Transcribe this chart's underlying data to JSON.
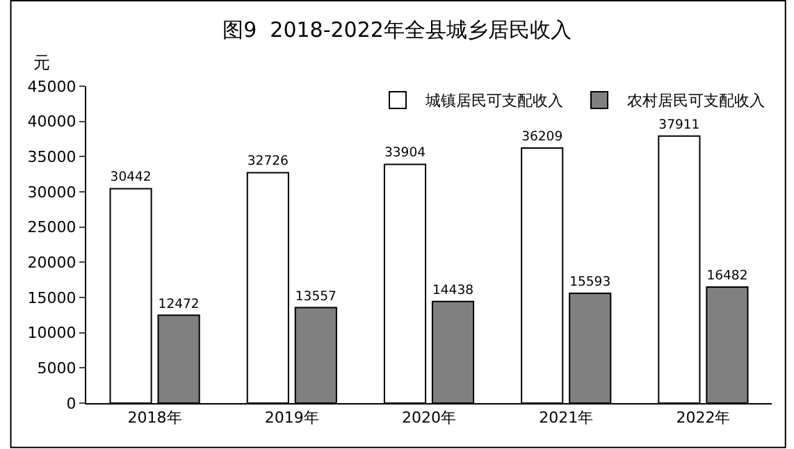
{
  "chart_data": {
    "type": "bar",
    "title": "图9  2018-2022年全县城乡居民收入",
    "ylabel": "元",
    "categories": [
      "2018年",
      "2019年",
      "2020年",
      "2021年",
      "2022年"
    ],
    "series": [
      {
        "name": "城镇居民可支配收入",
        "color": "#ffffff",
        "values": [
          30442,
          32726,
          33904,
          36209,
          37911
        ]
      },
      {
        "name": "农村居民可支配收入",
        "color": "#808080",
        "values": [
          12472,
          13557,
          14438,
          15593,
          16482
        ]
      }
    ],
    "ylim": [
      0,
      45000
    ],
    "yticks": [
      0,
      5000,
      10000,
      15000,
      20000,
      25000,
      30000,
      35000,
      40000,
      45000
    ],
    "data_labels": true,
    "legend": "top right"
  }
}
